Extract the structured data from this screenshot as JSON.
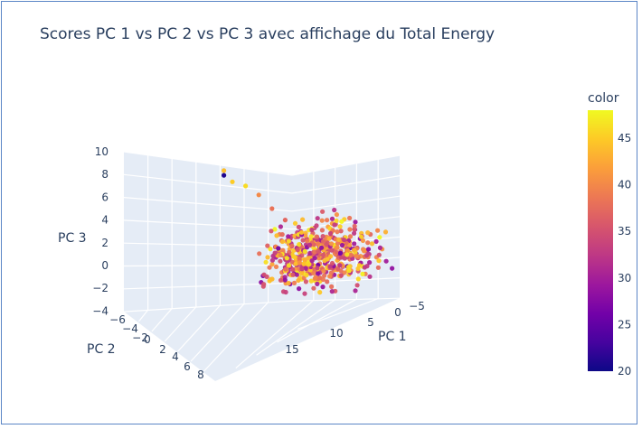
{
  "chart_data": {
    "type": "scatter3d",
    "title": "Scores PC 1 vs PC 2 vs PC 3 avec affichage du Total Energy",
    "axes": {
      "x": {
        "label": "PC 1",
        "range": [
          -5,
          20
        ],
        "ticks": [
          "−5",
          "0",
          "5",
          "10",
          "15"
        ]
      },
      "y": {
        "label": "PC 2",
        "range": [
          -6,
          8
        ],
        "ticks": [
          "−6",
          "−4",
          "−2",
          "0",
          "2",
          "4",
          "6",
          "8"
        ]
      },
      "z": {
        "label": "PC 3",
        "range": [
          -4,
          10
        ],
        "ticks": [
          "10",
          "8",
          "6",
          "4",
          "2",
          "0",
          "−2",
          "−4"
        ]
      }
    },
    "colorbar": {
      "title": "color",
      "range": [
        20,
        48
      ],
      "ticks": [
        "45",
        "40",
        "35",
        "30",
        "25",
        "20"
      ],
      "colorscale": [
        "#0d0887",
        "#46039f",
        "#7201a8",
        "#9c179e",
        "#bd3786",
        "#d8576b",
        "#ed7953",
        "#fb9f3a",
        "#fdca26",
        "#f0f921"
      ]
    },
    "trail_points": [
      {
        "pc1": 10,
        "pc2": -5,
        "pc3": 9.8,
        "value": 21
      },
      {
        "pc1": 10,
        "pc2": -5,
        "pc3": 10.2,
        "value": 44
      },
      {
        "pc1": 10,
        "pc2": -4,
        "pc3": 9.6,
        "value": 45
      },
      {
        "pc1": 9,
        "pc2": -3,
        "pc3": 9.4,
        "value": 46
      },
      {
        "pc1": 8,
        "pc2": -2,
        "pc3": 8.8,
        "value": 40
      },
      {
        "pc1": 7,
        "pc2": -1,
        "pc3": 7.8,
        "value": 38
      },
      {
        "pc1": 6,
        "pc2": 0,
        "pc3": 7.0,
        "value": 37
      },
      {
        "pc1": 5,
        "pc2": 1,
        "pc3": 4.6,
        "value": 44
      }
    ]
  }
}
